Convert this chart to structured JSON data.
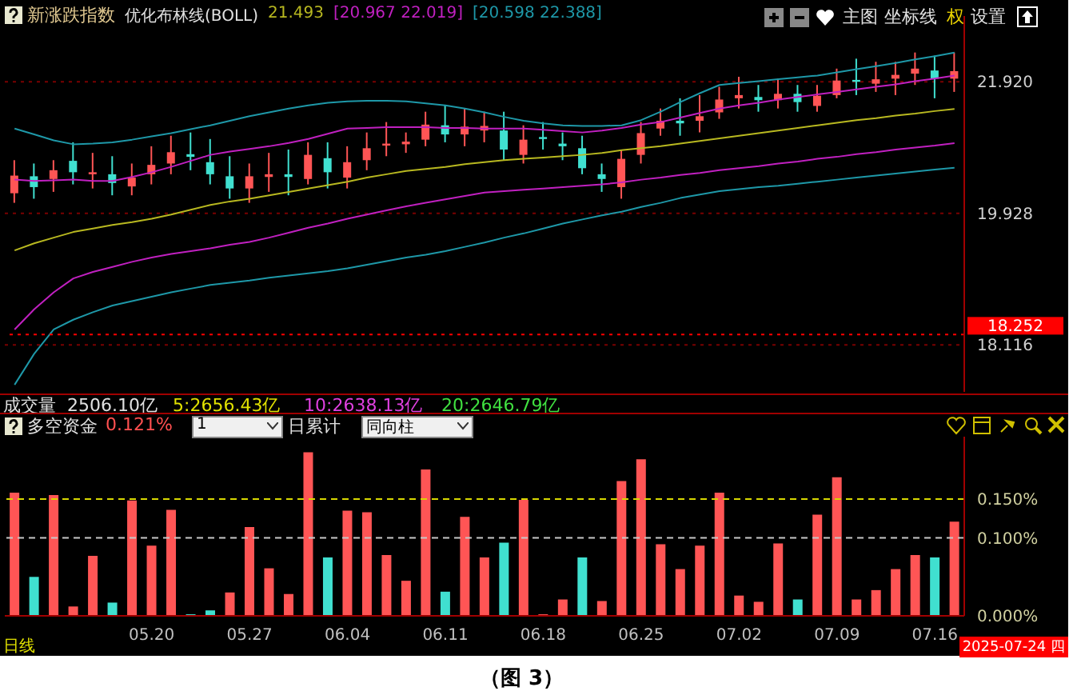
{
  "chart_data": [
    {
      "type": "candlestick",
      "title": "新涨跌指数",
      "legend_title": "优化布林线(BOLL)",
      "legend": "top",
      "log": true,
      "grid": "y",
      "tick_labels": "y",
      "categories": [
        null,
        null,
        null,
        null,
        null,
        null,
        null,
        "05.20",
        null,
        null,
        null,
        null,
        "05.27",
        null,
        null,
        null,
        null,
        "06.04",
        null,
        null,
        null,
        null,
        "06.11",
        null,
        null,
        null,
        null,
        "06.18",
        null,
        null,
        null,
        null,
        "06.25",
        null,
        null,
        null,
        null,
        "07.02",
        null,
        null,
        null,
        null,
        "07.09",
        null,
        null,
        null,
        null,
        "07.16",
        null
      ],
      "ylim": [
        17.51,
        22.99
      ],
      "yticks": [
        18.116,
        19.928,
        {
          "value": 21.92,
          "label": "21.920"
        }
      ],
      "ref_lines": [
        {
          "axis": "y",
          "value": 18.252,
          "label": "18.252",
          "color": "#ff0000"
        }
      ],
      "annotations": [
        "主图",
        "坐标线",
        "权",
        "设置"
      ],
      "ohlc": [
        [
          20.22,
          20.71,
          20.08,
          20.48
        ],
        [
          20.47,
          20.66,
          20.14,
          20.31
        ],
        [
          20.43,
          20.71,
          20.24,
          20.56
        ],
        [
          20.7,
          20.98,
          20.35,
          20.53
        ],
        [
          20.5,
          20.82,
          20.29,
          20.53
        ],
        [
          20.5,
          20.77,
          20.19,
          20.37
        ],
        [
          20.32,
          20.66,
          20.19,
          20.45
        ],
        [
          20.5,
          20.92,
          20.35,
          20.64
        ],
        [
          20.66,
          21.08,
          20.5,
          20.83
        ],
        [
          20.8,
          21.13,
          20.56,
          20.76
        ],
        [
          20.68,
          21.03,
          20.35,
          20.5
        ],
        [
          20.47,
          20.77,
          20.14,
          20.29
        ],
        [
          20.29,
          20.66,
          20.08,
          20.47
        ],
        [
          20.46,
          20.82,
          20.24,
          20.5
        ],
        [
          20.5,
          20.87,
          20.19,
          20.46
        ],
        [
          20.43,
          20.98,
          20.35,
          20.79
        ],
        [
          20.74,
          20.98,
          20.29,
          20.53
        ],
        [
          20.45,
          20.92,
          20.29,
          20.68
        ],
        [
          20.71,
          21.13,
          20.56,
          20.89
        ],
        [
          20.93,
          21.29,
          20.77,
          20.96
        ],
        [
          20.95,
          21.13,
          20.82,
          20.99
        ],
        [
          21.02,
          21.45,
          20.92,
          21.25
        ],
        [
          21.24,
          21.55,
          20.98,
          21.1
        ],
        [
          21.1,
          21.5,
          20.92,
          21.22
        ],
        [
          21.16,
          21.45,
          20.98,
          21.23
        ],
        [
          21.16,
          21.45,
          20.71,
          20.87
        ],
        [
          20.79,
          21.24,
          20.66,
          21.02
        ],
        [
          21.06,
          21.29,
          20.87,
          21.03
        ],
        [
          20.96,
          21.13,
          20.71,
          20.92
        ],
        [
          20.89,
          21.08,
          20.5,
          20.59
        ],
        [
          20.5,
          20.66,
          20.24,
          20.43
        ],
        [
          20.31,
          20.87,
          20.14,
          20.73
        ],
        [
          20.79,
          21.29,
          20.66,
          21.12
        ],
        [
          21.19,
          21.5,
          21.08,
          21.31
        ],
        [
          21.31,
          21.66,
          21.08,
          21.27
        ],
        [
          21.31,
          21.71,
          21.13,
          21.38
        ],
        [
          21.44,
          21.84,
          21.34,
          21.64
        ],
        [
          21.66,
          22.0,
          21.5,
          21.71
        ],
        [
          21.68,
          21.87,
          21.45,
          21.63
        ],
        [
          21.63,
          21.97,
          21.5,
          21.73
        ],
        [
          21.73,
          21.87,
          21.45,
          21.6
        ],
        [
          21.54,
          21.87,
          21.45,
          21.7
        ],
        [
          21.71,
          22.13,
          21.66,
          21.94
        ],
        [
          21.95,
          22.29,
          21.71,
          21.92
        ],
        [
          21.89,
          22.24,
          21.76,
          21.96
        ],
        [
          21.97,
          22.24,
          21.71,
          22.03
        ],
        [
          22.05,
          22.39,
          21.87,
          22.13
        ],
        [
          22.1,
          22.34,
          21.66,
          21.97
        ],
        [
          21.97,
          22.39,
          21.76,
          22.09
        ]
      ],
      "colors": [
        "#ff5555",
        "#40e0d0",
        "#ff5555",
        "#40e0d0",
        "#ff5555",
        "#40e0d0",
        "#ff5555",
        "#ff5555",
        "#ff5555",
        "#40e0d0",
        "#40e0d0",
        "#40e0d0",
        "#ff5555",
        "#ff5555",
        "#40e0d0",
        "#ff5555",
        "#40e0d0",
        "#ff5555",
        "#ff5555",
        "#ff5555",
        "#ff5555",
        "#ff5555",
        "#40e0d0",
        "#ff5555",
        "#ff5555",
        "#40e0d0",
        "#ff5555",
        "#40e0d0",
        "#40e0d0",
        "#40e0d0",
        "#40e0d0",
        "#ff5555",
        "#ff5555",
        "#ff5555",
        "#40e0d0",
        "#ff5555",
        "#ff5555",
        "#ff5555",
        "#40e0d0",
        "#ff5555",
        "#40e0d0",
        "#ff5555",
        "#ff5555",
        "#40e0d0",
        "#ff5555",
        "#ff5555",
        "#ff5555",
        "#40e0d0",
        "#ff5555"
      ],
      "series": [
        {
          "type": "line",
          "name": "21.493",
          "color": "#b8b820",
          "values": [
            19.4,
            19.5,
            19.58,
            19.66,
            19.71,
            19.76,
            19.8,
            19.85,
            19.91,
            19.98,
            20.05,
            20.1,
            20.14,
            20.19,
            20.24,
            20.29,
            20.34,
            20.39,
            20.45,
            20.5,
            20.55,
            20.58,
            20.61,
            20.65,
            20.68,
            20.71,
            20.73,
            20.75,
            20.77,
            20.79,
            20.82,
            20.86,
            20.89,
            20.92,
            20.96,
            21.0,
            21.04,
            21.08,
            21.12,
            21.16,
            21.2,
            21.24,
            21.28,
            21.32,
            21.35,
            21.39,
            21.42,
            21.46,
            21.493
          ]
        },
        {
          "type": "line",
          "name": "[20.967  22.019]",
          "color": "#c020c0",
          "values": [
            18.32,
            18.59,
            18.82,
            19.01,
            19.1,
            19.17,
            19.24,
            19.3,
            19.35,
            19.39,
            19.43,
            19.48,
            19.52,
            19.58,
            19.65,
            19.72,
            19.78,
            19.85,
            19.91,
            19.97,
            20.03,
            20.08,
            20.13,
            20.18,
            20.23,
            20.25,
            20.27,
            20.29,
            20.31,
            20.33,
            20.35,
            20.38,
            20.42,
            20.45,
            20.49,
            20.52,
            20.56,
            20.59,
            20.62,
            20.66,
            20.69,
            20.73,
            20.76,
            20.8,
            20.83,
            20.87,
            20.9,
            20.93,
            20.967
          ]
        },
        {
          "type": "line",
          "color": "#c020c0",
          "values": [
            20.42,
            20.4,
            20.41,
            20.42,
            20.4,
            20.4,
            20.46,
            20.53,
            20.61,
            20.7,
            20.79,
            20.84,
            20.88,
            20.92,
            20.97,
            21.03,
            21.11,
            21.19,
            21.2,
            21.21,
            21.21,
            21.21,
            21.2,
            21.2,
            21.19,
            21.19,
            21.19,
            21.17,
            21.15,
            21.13,
            21.16,
            21.2,
            21.25,
            21.29,
            21.36,
            21.43,
            21.5,
            21.55,
            21.59,
            21.64,
            21.68,
            21.72,
            21.76,
            21.8,
            21.84,
            21.88,
            21.93,
            21.97,
            22.019
          ]
        },
        {
          "type": "line",
          "name": "[20.598  22.388]",
          "color": "#1e98a8",
          "values": [
            17.6,
            18.0,
            18.32,
            18.45,
            18.55,
            18.64,
            18.7,
            18.76,
            18.82,
            18.87,
            18.92,
            18.95,
            18.98,
            19.02,
            19.05,
            19.08,
            19.11,
            19.15,
            19.2,
            19.25,
            19.3,
            19.34,
            19.39,
            19.45,
            19.51,
            19.58,
            19.64,
            19.71,
            19.78,
            19.84,
            19.9,
            19.95,
            20.02,
            20.08,
            20.15,
            20.2,
            20.25,
            20.28,
            20.31,
            20.33,
            20.36,
            20.39,
            20.42,
            20.45,
            20.48,
            20.51,
            20.54,
            20.57,
            20.598
          ]
        },
        {
          "type": "line",
          "color": "#1e98a8",
          "values": [
            21.19,
            21.1,
            21.01,
            20.95,
            20.96,
            20.98,
            21.02,
            21.07,
            21.12,
            21.18,
            21.24,
            21.31,
            21.38,
            21.44,
            21.5,
            21.55,
            21.59,
            21.61,
            21.62,
            21.62,
            21.61,
            21.58,
            21.55,
            21.5,
            21.44,
            21.37,
            21.31,
            21.27,
            21.24,
            21.23,
            21.23,
            21.24,
            21.32,
            21.45,
            21.6,
            21.74,
            21.87,
            21.9,
            21.93,
            21.96,
            21.99,
            22.02,
            22.07,
            22.12,
            22.17,
            22.22,
            22.28,
            22.33,
            22.388
          ]
        }
      ]
    },
    {
      "type": "bar",
      "title": "多空资金",
      "categories": [
        null,
        null,
        null,
        null,
        null,
        null,
        null,
        "05.20",
        null,
        null,
        null,
        null,
        "05.27",
        null,
        null,
        null,
        null,
        "06.04",
        null,
        null,
        null,
        null,
        "06.11",
        null,
        null,
        null,
        null,
        "06.18",
        null,
        null,
        null,
        null,
        "06.25",
        null,
        null,
        null,
        null,
        "07.02",
        null,
        null,
        null,
        null,
        "07.09",
        null,
        null,
        null,
        null,
        "07.16",
        null
      ],
      "values": [
        0.158,
        0.05,
        0.155,
        0.012,
        0.077,
        0.017,
        0.148,
        0.09,
        0.136,
        0.002,
        0.007,
        0.03,
        0.114,
        0.061,
        0.028,
        0.21,
        0.075,
        0.135,
        0.133,
        0.078,
        0.045,
        0.188,
        0.031,
        0.127,
        0.075,
        0.094,
        0.149,
        0.002,
        0.021,
        0.075,
        0.019,
        0.173,
        0.201,
        0.092,
        0.06,
        0.09,
        0.158,
        0.026,
        0.018,
        0.093,
        0.021,
        0.13,
        0.178,
        0.021,
        0.033,
        0.06,
        0.078,
        0.075,
        0.121
      ],
      "colors": [
        "#ff5555",
        "#40e0d0",
        "#ff5555",
        "#ff5555",
        "#ff5555",
        "#40e0d0",
        "#ff5555",
        "#ff5555",
        "#ff5555",
        "#40e0d0",
        "#40e0d0",
        "#ff5555",
        "#ff5555",
        "#ff5555",
        "#ff5555",
        "#ff5555",
        "#40e0d0",
        "#ff5555",
        "#ff5555",
        "#ff5555",
        "#ff5555",
        "#ff5555",
        "#40e0d0",
        "#ff5555",
        "#ff5555",
        "#40e0d0",
        "#ff5555",
        "#ff5555",
        "#ff5555",
        "#40e0d0",
        "#ff5555",
        "#ff5555",
        "#ff5555",
        "#ff5555",
        "#ff5555",
        "#ff5555",
        "#ff5555",
        "#ff5555",
        "#ff5555",
        "#ff5555",
        "#40e0d0",
        "#ff5555",
        "#ff5555",
        "#ff5555",
        "#ff5555",
        "#ff5555",
        "#ff5555",
        "#40e0d0",
        "#ff5555"
      ],
      "ylim": [
        0,
        0.23
      ],
      "yticks": [
        {
          "value": 0,
          "label": "0.000%"
        },
        {
          "value": 0.1,
          "label": "0.100%"
        },
        {
          "value": 0.15,
          "label": "0.150%"
        }
      ],
      "ref_lines": [
        {
          "axis": "y",
          "value": 0.15,
          "color": "#d8d800",
          "line_style": "dashed"
        },
        {
          "axis": "y",
          "value": 0.1,
          "color": "#c8c8c8",
          "line_style": "dashed"
        }
      ],
      "annotations": [
        "0.121%",
        "1",
        "日累计",
        "同向柱",
        "日线",
        "2025-07-24 四",
        "成交量",
        "2506.10亿",
        "5:2656.43亿",
        "10:2638.13亿",
        "20:2646.79亿",
        "（图 3）"
      ]
    }
  ]
}
